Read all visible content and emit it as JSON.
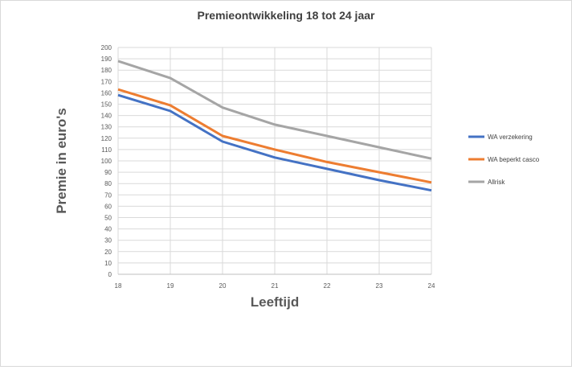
{
  "chart_data": {
    "type": "line",
    "title": "Premieontwikkeling 18 tot 24 jaar",
    "xlabel": "Leeftijd",
    "ylabel": "Premie in euro's",
    "x": [
      "18",
      "19",
      "20",
      "21",
      "22",
      "23",
      "24"
    ],
    "ylim": [
      0,
      200
    ],
    "ytick_step": 10,
    "grid": true,
    "legend_position": "right",
    "series": [
      {
        "name": "WA verzekering",
        "color": "#4472C4",
        "values": [
          158,
          144,
          117,
          103,
          93,
          83,
          74
        ]
      },
      {
        "name": "WA beperkt casco",
        "color": "#ED7D31",
        "values": [
          163,
          149,
          122,
          110,
          99,
          90,
          81
        ]
      },
      {
        "name": "Allrisk",
        "color": "#A5A5A5",
        "values": [
          188,
          173,
          147,
          132,
          122,
          112,
          102
        ]
      }
    ]
  }
}
